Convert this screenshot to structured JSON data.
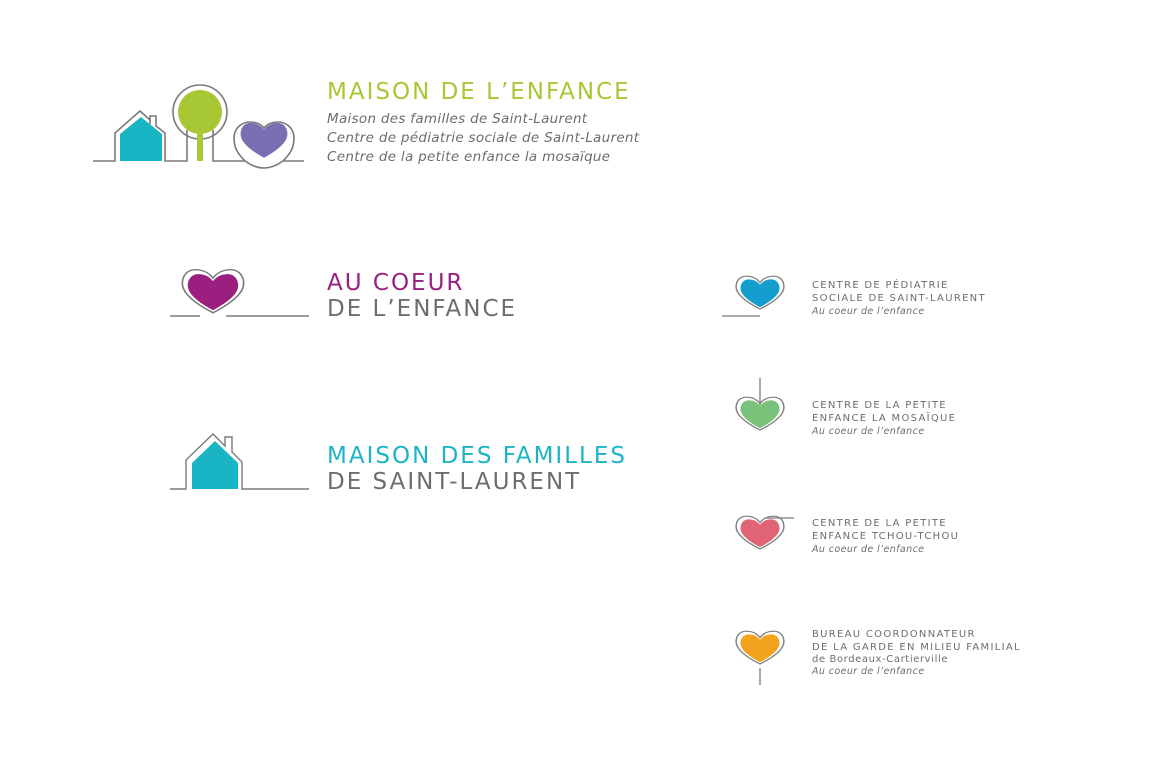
{
  "colors": {
    "line": "#7a7a7a",
    "green": "#a8c734",
    "teal": "#1ab5c4",
    "purple": "#7b6fb4",
    "magenta": "#9a1f7e",
    "blue": "#139ecf",
    "light_green": "#78c27a",
    "pink": "#e06474",
    "orange": "#f3a21d",
    "text_gray": "#6d6d6d"
  },
  "main_logo": {
    "title": "MAISON DE L’ENFANCE",
    "lines": [
      "Maison des familles de Saint-Laurent",
      "Centre de pédiatrie sociale de Saint-Laurent",
      "Centre de la petite enfance la mosaïque"
    ]
  },
  "coeur_logo": {
    "line1": "AU COEUR",
    "line2": "DE L’ENFANCE"
  },
  "familles_logo": {
    "line1": "MAISON DES FAMILLES",
    "line2": "DE SAINT-LAURENT"
  },
  "small_logos": [
    {
      "lines": [
        "CENTRE DE PÉDIATRIE",
        "SOCIALE DE SAINT-LAURENT"
      ],
      "extra": "",
      "tagline": "Au coeur de l’enfance"
    },
    {
      "lines": [
        "CENTRE DE LA PETITE",
        "ENFANCE LA MOSAÏQUE"
      ],
      "extra": "",
      "tagline": "Au coeur de l’enfance"
    },
    {
      "lines": [
        "CENTRE DE LA PETITE",
        "ENFANCE TCHOU-TCHOU"
      ],
      "extra": "",
      "tagline": "Au coeur de l’enfance"
    },
    {
      "lines": [
        "BUREAU COORDONNATEUR",
        "DE LA GARDE EN MILIEU FAMILIAL"
      ],
      "extra": "de Bordeaux-Cartierville",
      "tagline": "Au coeur de l’enfance"
    }
  ]
}
